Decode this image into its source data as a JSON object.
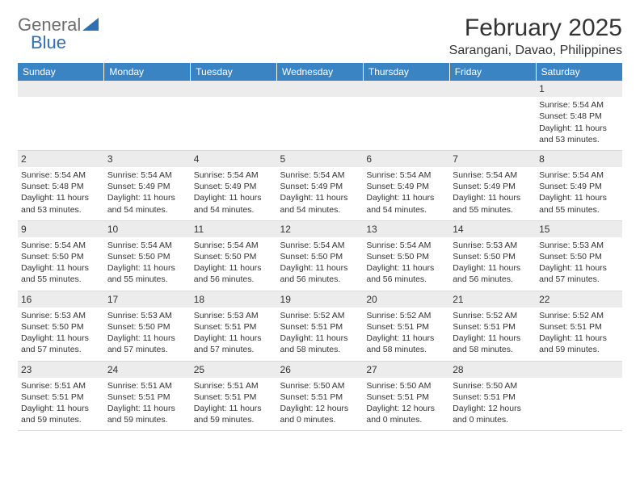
{
  "logo": {
    "text_general": "General",
    "text_blue": "Blue"
  },
  "title": "February 2025",
  "location": "Sarangani, Davao, Philippines",
  "colors": {
    "header_bg": "#3b84c4",
    "header_text": "#ffffff",
    "daynum_bg": "#ececec",
    "border": "#d9d9d9",
    "body_text": "#333333",
    "logo_blue": "#2f6fb3",
    "logo_grey": "#6d6d6d",
    "page_bg": "#ffffff"
  },
  "typography": {
    "title_fontsize": 30,
    "location_fontsize": 16,
    "dayheader_fontsize": 12,
    "daynum_fontsize": 12,
    "cell_fontsize": 10.5,
    "logo_fontsize": 22
  },
  "weekdays": [
    "Sunday",
    "Monday",
    "Tuesday",
    "Wednesday",
    "Thursday",
    "Friday",
    "Saturday"
  ],
  "weeks": [
    [
      {
        "n": "",
        "b": ""
      },
      {
        "n": "",
        "b": ""
      },
      {
        "n": "",
        "b": ""
      },
      {
        "n": "",
        "b": ""
      },
      {
        "n": "",
        "b": ""
      },
      {
        "n": "",
        "b": ""
      },
      {
        "n": "1",
        "b": "Sunrise: 5:54 AM\nSunset: 5:48 PM\nDaylight: 11 hours and 53 minutes."
      }
    ],
    [
      {
        "n": "2",
        "b": "Sunrise: 5:54 AM\nSunset: 5:48 PM\nDaylight: 11 hours and 53 minutes."
      },
      {
        "n": "3",
        "b": "Sunrise: 5:54 AM\nSunset: 5:49 PM\nDaylight: 11 hours and 54 minutes."
      },
      {
        "n": "4",
        "b": "Sunrise: 5:54 AM\nSunset: 5:49 PM\nDaylight: 11 hours and 54 minutes."
      },
      {
        "n": "5",
        "b": "Sunrise: 5:54 AM\nSunset: 5:49 PM\nDaylight: 11 hours and 54 minutes."
      },
      {
        "n": "6",
        "b": "Sunrise: 5:54 AM\nSunset: 5:49 PM\nDaylight: 11 hours and 54 minutes."
      },
      {
        "n": "7",
        "b": "Sunrise: 5:54 AM\nSunset: 5:49 PM\nDaylight: 11 hours and 55 minutes."
      },
      {
        "n": "8",
        "b": "Sunrise: 5:54 AM\nSunset: 5:49 PM\nDaylight: 11 hours and 55 minutes."
      }
    ],
    [
      {
        "n": "9",
        "b": "Sunrise: 5:54 AM\nSunset: 5:50 PM\nDaylight: 11 hours and 55 minutes."
      },
      {
        "n": "10",
        "b": "Sunrise: 5:54 AM\nSunset: 5:50 PM\nDaylight: 11 hours and 55 minutes."
      },
      {
        "n": "11",
        "b": "Sunrise: 5:54 AM\nSunset: 5:50 PM\nDaylight: 11 hours and 56 minutes."
      },
      {
        "n": "12",
        "b": "Sunrise: 5:54 AM\nSunset: 5:50 PM\nDaylight: 11 hours and 56 minutes."
      },
      {
        "n": "13",
        "b": "Sunrise: 5:54 AM\nSunset: 5:50 PM\nDaylight: 11 hours and 56 minutes."
      },
      {
        "n": "14",
        "b": "Sunrise: 5:53 AM\nSunset: 5:50 PM\nDaylight: 11 hours and 56 minutes."
      },
      {
        "n": "15",
        "b": "Sunrise: 5:53 AM\nSunset: 5:50 PM\nDaylight: 11 hours and 57 minutes."
      }
    ],
    [
      {
        "n": "16",
        "b": "Sunrise: 5:53 AM\nSunset: 5:50 PM\nDaylight: 11 hours and 57 minutes."
      },
      {
        "n": "17",
        "b": "Sunrise: 5:53 AM\nSunset: 5:50 PM\nDaylight: 11 hours and 57 minutes."
      },
      {
        "n": "18",
        "b": "Sunrise: 5:53 AM\nSunset: 5:51 PM\nDaylight: 11 hours and 57 minutes."
      },
      {
        "n": "19",
        "b": "Sunrise: 5:52 AM\nSunset: 5:51 PM\nDaylight: 11 hours and 58 minutes."
      },
      {
        "n": "20",
        "b": "Sunrise: 5:52 AM\nSunset: 5:51 PM\nDaylight: 11 hours and 58 minutes."
      },
      {
        "n": "21",
        "b": "Sunrise: 5:52 AM\nSunset: 5:51 PM\nDaylight: 11 hours and 58 minutes."
      },
      {
        "n": "22",
        "b": "Sunrise: 5:52 AM\nSunset: 5:51 PM\nDaylight: 11 hours and 59 minutes."
      }
    ],
    [
      {
        "n": "23",
        "b": "Sunrise: 5:51 AM\nSunset: 5:51 PM\nDaylight: 11 hours and 59 minutes."
      },
      {
        "n": "24",
        "b": "Sunrise: 5:51 AM\nSunset: 5:51 PM\nDaylight: 11 hours and 59 minutes."
      },
      {
        "n": "25",
        "b": "Sunrise: 5:51 AM\nSunset: 5:51 PM\nDaylight: 11 hours and 59 minutes."
      },
      {
        "n": "26",
        "b": "Sunrise: 5:50 AM\nSunset: 5:51 PM\nDaylight: 12 hours and 0 minutes."
      },
      {
        "n": "27",
        "b": "Sunrise: 5:50 AM\nSunset: 5:51 PM\nDaylight: 12 hours and 0 minutes."
      },
      {
        "n": "28",
        "b": "Sunrise: 5:50 AM\nSunset: 5:51 PM\nDaylight: 12 hours and 0 minutes."
      },
      {
        "n": "",
        "b": ""
      }
    ]
  ]
}
